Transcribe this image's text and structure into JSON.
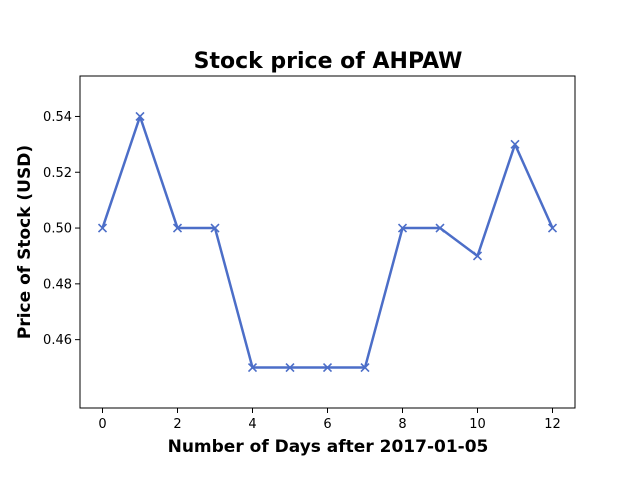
{
  "chart_data": {
    "type": "line",
    "title": "Stock price of AHPAW",
    "xlabel": "Number of Days after 2017-01-05",
    "ylabel": "Price of Stock (USD)",
    "x": [
      0,
      1,
      2,
      3,
      4,
      5,
      6,
      7,
      8,
      9,
      10,
      11,
      12
    ],
    "series": [
      {
        "values": [
          0.5,
          0.54,
          0.5,
          0.5,
          0.45,
          0.45,
          0.45,
          0.45,
          0.5,
          0.5,
          0.49,
          0.53,
          0.5
        ],
        "color": "#4c6ec8",
        "marker": "x"
      }
    ],
    "xlim": [
      -0.6,
      12.6
    ],
    "ylim": [
      0.4355,
      0.5545
    ],
    "xticks": [
      0,
      2,
      4,
      6,
      8,
      10,
      12
    ],
    "xtick_labels": [
      "0",
      "2",
      "4",
      "6",
      "8",
      "10",
      "12"
    ],
    "yticks": [
      0.46,
      0.48,
      0.5,
      0.52,
      0.54
    ],
    "ytick_labels": [
      "0.46",
      "0.48",
      "0.50",
      "0.52",
      "0.54"
    ],
    "grid": false,
    "legend": "none"
  }
}
